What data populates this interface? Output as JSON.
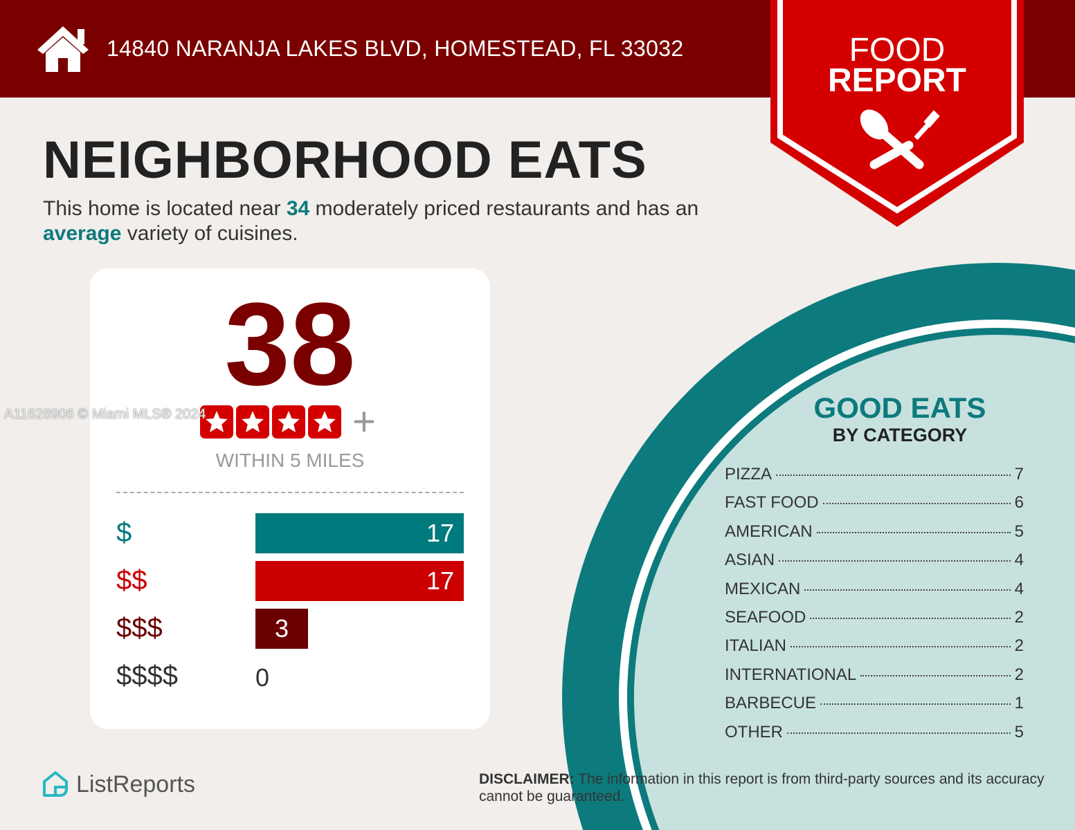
{
  "header": {
    "address": "14840 NARANJA LAKES BLVD, HOMESTEAD, FL 33032",
    "icon": "home-icon"
  },
  "badge": {
    "line1": "FOOD",
    "line2": "REPORT",
    "icon": "spoon-fork-icon"
  },
  "title": "NEIGHBORHOOD EATS",
  "intro": {
    "part1": "This home is located near ",
    "count": "34",
    "part2": " moderately priced restaurants and has an ",
    "variety": "average",
    "part3": " variety of cuisines."
  },
  "summary": {
    "total": "38",
    "rating_stars": 4,
    "rating_plus": "+",
    "within": "WITHIN 5 MILES"
  },
  "price_tiers": [
    {
      "label": "$",
      "value": 17,
      "color": "#007a7c"
    },
    {
      "label": "$$",
      "value": 17,
      "color": "#cc0000"
    },
    {
      "label": "$$$",
      "value": 3,
      "color": "#6b0000"
    },
    {
      "label": "$$$$",
      "value": 0,
      "color": "#333333"
    }
  ],
  "good_eats": {
    "title": "GOOD EATS",
    "subtitle": "BY CATEGORY",
    "categories": [
      {
        "name": "PIZZA",
        "count": "7"
      },
      {
        "name": "FAST FOOD",
        "count": "6"
      },
      {
        "name": "AMERICAN",
        "count": "5"
      },
      {
        "name": "ASIAN",
        "count": "4"
      },
      {
        "name": "MEXICAN",
        "count": "4"
      },
      {
        "name": "SEAFOOD",
        "count": "2"
      },
      {
        "name": "ITALIAN",
        "count": "2"
      },
      {
        "name": "INTERNATIONAL",
        "count": "2"
      },
      {
        "name": "BARBECUE",
        "count": "1"
      },
      {
        "name": "OTHER",
        "count": "5"
      }
    ]
  },
  "footer": {
    "logo": "ListReports",
    "disclaimer_label": "DISCLAIMER:",
    "disclaimer_text": " The information in this report is from third-party sources and its accuracy cannot be guaranteed."
  },
  "watermark": "A11628906 © Miami MLS® 2024",
  "colors": {
    "header": "#7a0000",
    "badge": "#d40000",
    "teal": "#0d7a7d",
    "light_teal": "#c7e1df"
  }
}
